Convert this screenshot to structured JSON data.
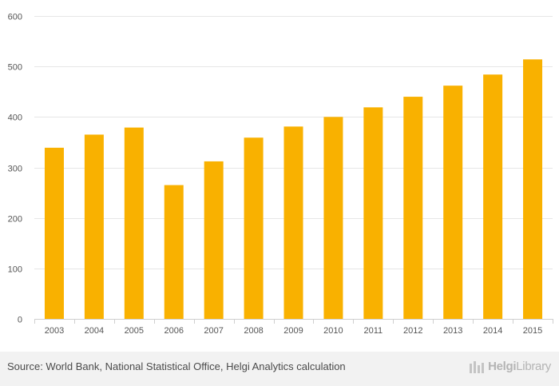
{
  "chart_data": {
    "type": "bar",
    "title": "",
    "xlabel": "",
    "ylabel": "",
    "categories": [
      "2003",
      "2004",
      "2005",
      "2006",
      "2007",
      "2008",
      "2009",
      "2010",
      "2011",
      "2012",
      "2013",
      "2014",
      "2015"
    ],
    "values": [
      339,
      365,
      379,
      265,
      312,
      359,
      381,
      400,
      419,
      440,
      462,
      484,
      514
    ],
    "ylim": [
      0,
      600
    ],
    "yticks": [
      0,
      100,
      200,
      300,
      400,
      500,
      600
    ],
    "ytick_labels": [
      "0",
      "100",
      "200",
      "300",
      "400",
      "500",
      "600"
    ],
    "bar_color": "#f9b100",
    "grid": true
  },
  "footer": {
    "source": "Source: World Bank, National Statistical Office, Helgi Analytics calculation",
    "logo_helgi": "Helgi",
    "logo_library": "Library"
  }
}
